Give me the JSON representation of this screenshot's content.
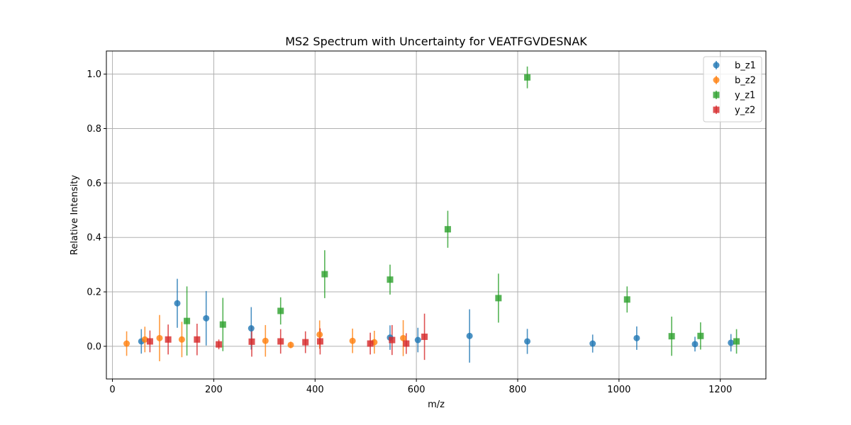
{
  "chart_data": {
    "type": "scatter",
    "title": "MS2 Spectrum with Uncertainty for VEATFGVDESNAK",
    "xlabel": "m/z",
    "ylabel": "Relative Intensity",
    "xlim": [
      -12,
      1290
    ],
    "ylim": [
      -0.12,
      1.085
    ],
    "x_ticks": [
      0,
      200,
      400,
      600,
      800,
      1000,
      1200
    ],
    "y_ticks": [
      0.0,
      0.2,
      0.4,
      0.6,
      0.8,
      1.0
    ],
    "x_tick_labels": [
      "0",
      "200",
      "400",
      "600",
      "800",
      "1000",
      "1200"
    ],
    "y_tick_labels": [
      "0.0",
      "0.2",
      "0.4",
      "0.6",
      "0.8",
      "1.0"
    ],
    "grid": true,
    "legend_position": "top-right",
    "series": [
      {
        "name": "b_z1",
        "marker": "circle",
        "color": "#1f77b4",
        "points": [
          {
            "x": 57,
            "y": 0.018,
            "err": 0.045
          },
          {
            "x": 128,
            "y": 0.158,
            "err": 0.09
          },
          {
            "x": 185,
            "y": 0.103,
            "err": 0.1
          },
          {
            "x": 274,
            "y": 0.066,
            "err": 0.078
          },
          {
            "x": 548,
            "y": 0.032,
            "err": 0.045
          },
          {
            "x": 603,
            "y": 0.023,
            "err": 0.045
          },
          {
            "x": 705,
            "y": 0.038,
            "err": 0.098
          },
          {
            "x": 819,
            "y": 0.018,
            "err": 0.046
          },
          {
            "x": 948,
            "y": 0.01,
            "err": 0.033
          },
          {
            "x": 1035,
            "y": 0.03,
            "err": 0.043
          },
          {
            "x": 1150,
            "y": 0.008,
            "err": 0.027
          },
          {
            "x": 1221,
            "y": 0.013,
            "err": 0.032
          }
        ]
      },
      {
        "name": "b_z2",
        "marker": "circle",
        "color": "#ff7f0e",
        "points": [
          {
            "x": 28,
            "y": 0.01,
            "err": 0.045
          },
          {
            "x": 64,
            "y": 0.025,
            "err": 0.047
          },
          {
            "x": 93,
            "y": 0.03,
            "err": 0.085
          },
          {
            "x": 137,
            "y": 0.025,
            "err": 0.065
          },
          {
            "x": 302,
            "y": 0.02,
            "err": 0.058
          },
          {
            "x": 352,
            "y": 0.005,
            "err": 0.012
          },
          {
            "x": 409,
            "y": 0.043,
            "err": 0.052
          },
          {
            "x": 474,
            "y": 0.02,
            "err": 0.045
          },
          {
            "x": 517,
            "y": 0.015,
            "err": 0.042
          },
          {
            "x": 574,
            "y": 0.03,
            "err": 0.066
          }
        ]
      },
      {
        "name": "y_z1",
        "marker": "square",
        "color": "#2ca02c",
        "points": [
          {
            "x": 147,
            "y": 0.093,
            "err": 0.127
          },
          {
            "x": 218,
            "y": 0.08,
            "err": 0.098
          },
          {
            "x": 332,
            "y": 0.13,
            "err": 0.05
          },
          {
            "x": 419,
            "y": 0.265,
            "err": 0.088
          },
          {
            "x": 548,
            "y": 0.245,
            "err": 0.055
          },
          {
            "x": 662,
            "y": 0.43,
            "err": 0.068
          },
          {
            "x": 762,
            "y": 0.177,
            "err": 0.09
          },
          {
            "x": 819,
            "y": 0.988,
            "err": 0.04
          },
          {
            "x": 1016,
            "y": 0.172,
            "err": 0.048
          },
          {
            "x": 1104,
            "y": 0.037,
            "err": 0.072
          },
          {
            "x": 1161,
            "y": 0.038,
            "err": 0.05
          },
          {
            "x": 1232,
            "y": 0.018,
            "err": 0.045
          }
        ]
      },
      {
        "name": "y_z2",
        "marker": "square",
        "color": "#d62728",
        "points": [
          {
            "x": 74,
            "y": 0.018,
            "err": 0.04
          },
          {
            "x": 110,
            "y": 0.025,
            "err": 0.055
          },
          {
            "x": 167,
            "y": 0.025,
            "err": 0.058
          },
          {
            "x": 210,
            "y": 0.007,
            "err": 0.018
          },
          {
            "x": 275,
            "y": 0.017,
            "err": 0.055
          },
          {
            "x": 332,
            "y": 0.018,
            "err": 0.045
          },
          {
            "x": 381,
            "y": 0.015,
            "err": 0.04
          },
          {
            "x": 410,
            "y": 0.018,
            "err": 0.048
          },
          {
            "x": 509,
            "y": 0.01,
            "err": 0.04
          },
          {
            "x": 552,
            "y": 0.023,
            "err": 0.055
          },
          {
            "x": 580,
            "y": 0.01,
            "err": 0.038
          },
          {
            "x": 616,
            "y": 0.035,
            "err": 0.085
          }
        ]
      }
    ]
  }
}
